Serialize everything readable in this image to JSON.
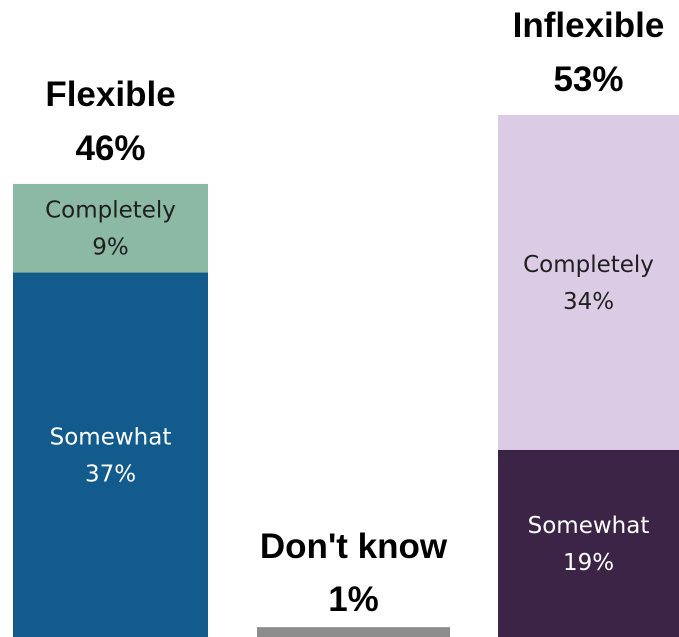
{
  "chart_data": {
    "type": "bar",
    "stacked": true,
    "categories": [
      "Flexible",
      "Don't know",
      "Inflexible"
    ],
    "category_totals": [
      "46%",
      "1%",
      "53%"
    ],
    "values": [
      46,
      1,
      53
    ],
    "ylim": [
      0,
      100
    ],
    "grid": false,
    "bars": [
      {
        "category": "Flexible",
        "total_label": "46%",
        "segments": [
          {
            "label": "Somewhat",
            "value": 37,
            "value_label": "37%",
            "color": "#125b8c",
            "text_color": "#ffffff"
          },
          {
            "label": "Completely",
            "value": 9,
            "value_label": "9%",
            "color": "#8bb9a4",
            "text_color": "#1f1f1f"
          }
        ]
      },
      {
        "category": "Don't know",
        "total_label": "1%",
        "segments": [
          {
            "label": "",
            "value": 1,
            "value_label": "",
            "color": "#8c8c8c",
            "text_color": "#ffffff"
          }
        ]
      },
      {
        "category": "Inflexible",
        "total_label": "53%",
        "segments": [
          {
            "label": "Somewhat",
            "value": 19,
            "value_label": "19%",
            "color": "#3c2447",
            "text_color": "#ffffff"
          },
          {
            "label": "Completely",
            "value": 34,
            "value_label": "34%",
            "color": "#dccbe5",
            "text_color": "#1f1f1f"
          }
        ]
      }
    ]
  }
}
